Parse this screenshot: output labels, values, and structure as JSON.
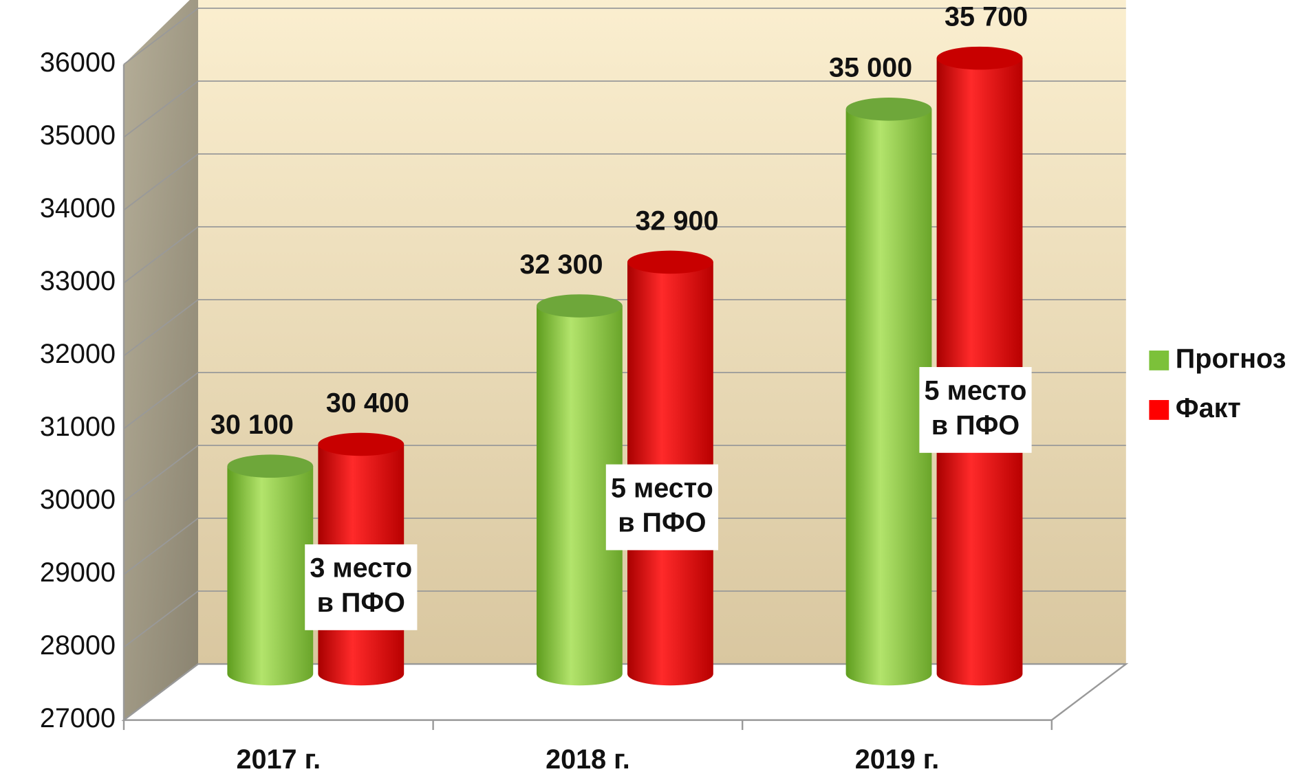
{
  "chart_data": {
    "type": "bar3d",
    "categories": [
      "2017 г.",
      "2018 г.",
      "2019 г."
    ],
    "series": [
      {
        "name": "Прогноз",
        "color": "#7cc13a",
        "values": [
          30100,
          32300,
          35000
        ],
        "value_labels": [
          "30 100",
          "32 300",
          "35 000"
        ]
      },
      {
        "name": "Факт",
        "color": "#ff0000",
        "values": [
          30400,
          32900,
          35700
        ],
        "value_labels": [
          "30 400",
          "32 900",
          "35 700"
        ]
      }
    ],
    "annotations": [
      [
        "3 место",
        "в ПФО"
      ],
      [
        "5 место",
        "в ПФО"
      ],
      [
        "5 место",
        "в ПФО"
      ]
    ],
    "ylim": [
      27000,
      36000
    ],
    "yticks": [
      27000,
      28000,
      29000,
      30000,
      31000,
      32000,
      33000,
      34000,
      35000,
      36000
    ],
    "grid": true,
    "legend": "right"
  }
}
